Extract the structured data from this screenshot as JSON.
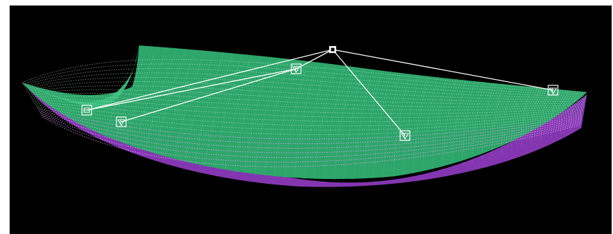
{
  "viewport": {
    "background": "#000000",
    "frame_color": "#ffffff"
  },
  "mesh": {
    "type": "wireframe-surface",
    "colors": {
      "front": "#3fbf7f",
      "grid_light": "#b6f0cf",
      "underside": "#b14fd8",
      "underside_light": "#e2a6f5"
    }
  },
  "rig": {
    "line_color": "#ffffff",
    "hub_node": "hub-node",
    "nodes": [
      {
        "id": "hub-node",
        "icon": "square-marker-icon"
      },
      {
        "id": "node-center-top",
        "icon": "triangle-marker-icon"
      },
      {
        "id": "node-right-edge",
        "icon": "triangle-marker-icon"
      },
      {
        "id": "node-left-edge",
        "icon": "square-marker-icon"
      },
      {
        "id": "node-left-inner",
        "icon": "triangle-marker-icon"
      },
      {
        "id": "node-center-front",
        "icon": "triangle-marker-icon"
      }
    ],
    "cables": [
      [
        "hub-node",
        "node-center-top"
      ],
      [
        "hub-node",
        "node-right-edge"
      ],
      [
        "hub-node",
        "node-left-edge"
      ],
      [
        "hub-node",
        "node-center-front"
      ],
      [
        "node-center-top",
        "node-left-edge"
      ],
      [
        "node-center-top",
        "node-left-inner"
      ]
    ]
  }
}
